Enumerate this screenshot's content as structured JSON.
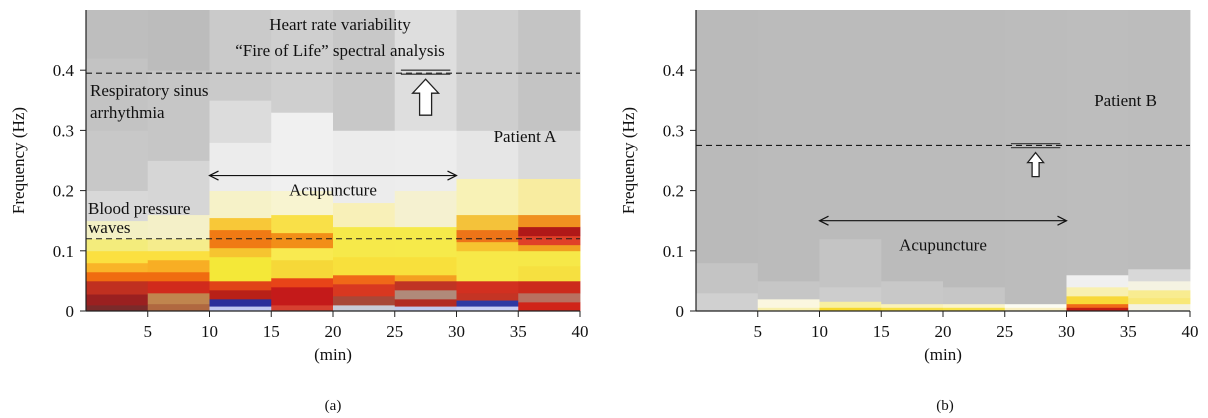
{
  "chart_data": [
    {
      "type": "heatmap",
      "panel_label": "(a)",
      "title": "Heart rate variability",
      "subtitle": "“Fire of Life” spectral analysis",
      "xlabel": "(min)",
      "ylabel": "Frequency (Hz)",
      "xlim": [
        0,
        40
      ],
      "ylim": [
        0,
        0.5
      ],
      "x_ticks": [
        5,
        10,
        15,
        20,
        25,
        30,
        35,
        40
      ],
      "y_ticks": [
        0,
        0.1,
        0.2,
        0.3,
        0.4
      ],
      "y_tick_labels": [
        "0",
        "0.1",
        "0.2",
        "0.3",
        "0.4"
      ],
      "patient_label": "Patient A",
      "reference_lines": [
        {
          "y": 0.395,
          "label": "Respiratory sinus arrhythmia",
          "label_lines": [
            "Respiratory sinus",
            "arrhythmia"
          ]
        },
        {
          "y": 0.12,
          "label": "Blood pressure waves",
          "label_lines": [
            "Blood pressure",
            "waves"
          ]
        }
      ],
      "marker": {
        "x": [
          25.5,
          29.5
        ],
        "y": 0.4,
        "arrow": "up"
      },
      "annotation": {
        "text": "Acupuncture",
        "x_start": 10,
        "x_end": 30,
        "y": 0.225
      },
      "columns": [
        {
          "x": [
            0,
            5
          ],
          "bands": [
            [
              0,
              0.01,
              "#7a2a2a"
            ],
            [
              0.01,
              0.028,
              "#9a2020"
            ],
            [
              0.028,
              0.05,
              "#c03020"
            ],
            [
              0.05,
              0.065,
              "#f06c10"
            ],
            [
              0.065,
              0.08,
              "#f9b428"
            ],
            [
              0.08,
              0.1,
              "#fbe040"
            ],
            [
              0.1,
              0.12,
              "#f3ec7c"
            ],
            [
              0.12,
              0.15,
              "#f3f0c4"
            ],
            [
              0.15,
              0.2,
              "#d8d8d8"
            ],
            [
              0.2,
              0.3,
              "#c8c8c8"
            ],
            [
              0.3,
              0.42,
              "#c3c3c3"
            ],
            [
              0.42,
              0.5,
              "#bebebe"
            ]
          ]
        },
        {
          "x": [
            5,
            10
          ],
          "bands": [
            [
              0,
              0.012,
              "#b06840"
            ],
            [
              0.012,
              0.03,
              "#c0854e"
            ],
            [
              0.03,
              0.05,
              "#d12a1c"
            ],
            [
              0.05,
              0.065,
              "#f06c10"
            ],
            [
              0.065,
              0.085,
              "#f8ae24"
            ],
            [
              0.085,
              0.1,
              "#fbe040"
            ],
            [
              0.1,
              0.12,
              "#f5ec8c"
            ],
            [
              0.12,
              0.16,
              "#f4f0c8"
            ],
            [
              0.16,
              0.25,
              "#d6d6d6"
            ],
            [
              0.25,
              0.4,
              "#c6c6c6"
            ],
            [
              0.4,
              0.5,
              "#bcbcbc"
            ]
          ]
        },
        {
          "x": [
            10,
            15
          ],
          "bands": [
            [
              0,
              0.008,
              "#c0c8f0"
            ],
            [
              0.008,
              0.02,
              "#2a2f9a"
            ],
            [
              0.02,
              0.035,
              "#b82018"
            ],
            [
              0.035,
              0.05,
              "#e04418"
            ],
            [
              0.05,
              0.09,
              "#f4e838"
            ],
            [
              0.09,
              0.105,
              "#f6c430"
            ],
            [
              0.105,
              0.135,
              "#f07a14"
            ],
            [
              0.135,
              0.155,
              "#f8c838"
            ],
            [
              0.155,
              0.2,
              "#f6f2c8"
            ],
            [
              0.2,
              0.28,
              "#ececec"
            ],
            [
              0.28,
              0.35,
              "#dcdcdc"
            ],
            [
              0.35,
              0.5,
              "#cacaca"
            ]
          ]
        },
        {
          "x": [
            15,
            20
          ],
          "bands": [
            [
              0,
              0.01,
              "#d64030"
            ],
            [
              0.01,
              0.04,
              "#c41a1a"
            ],
            [
              0.04,
              0.055,
              "#e84418"
            ],
            [
              0.055,
              0.085,
              "#f6d838"
            ],
            [
              0.085,
              0.105,
              "#f9ea50"
            ],
            [
              0.105,
              0.13,
              "#f28e18"
            ],
            [
              0.13,
              0.16,
              "#f9e048"
            ],
            [
              0.16,
              0.2,
              "#f8f4d0"
            ],
            [
              0.2,
              0.33,
              "#f0f0f0"
            ],
            [
              0.33,
              0.5,
              "#cfcfcf"
            ]
          ]
        },
        {
          "x": [
            20,
            25
          ],
          "bands": [
            [
              0,
              0.01,
              "#c8ccd8"
            ],
            [
              0.01,
              0.025,
              "#a84838"
            ],
            [
              0.025,
              0.045,
              "#d83820"
            ],
            [
              0.045,
              0.06,
              "#f06818"
            ],
            [
              0.06,
              0.09,
              "#f8e03c"
            ],
            [
              0.09,
              0.14,
              "#f6e94a"
            ],
            [
              0.14,
              0.18,
              "#f8f0b8"
            ],
            [
              0.18,
              0.3,
              "#ececec"
            ],
            [
              0.3,
              0.5,
              "#c8c8c8"
            ]
          ]
        },
        {
          "x": [
            25,
            30
          ],
          "bands": [
            [
              0,
              0.008,
              "#c0c8ec"
            ],
            [
              0.008,
              0.02,
              "#b22c22"
            ],
            [
              0.02,
              0.035,
              "#b08a7a"
            ],
            [
              0.035,
              0.05,
              "#c03424"
            ],
            [
              0.05,
              0.06,
              "#f4a020"
            ],
            [
              0.06,
              0.09,
              "#f8e03c"
            ],
            [
              0.09,
              0.14,
              "#f6ea4a"
            ],
            [
              0.14,
              0.2,
              "#f5f1d0"
            ],
            [
              0.2,
              0.3,
              "#ededed"
            ],
            [
              0.3,
              0.5,
              "#dedede"
            ]
          ]
        },
        {
          "x": [
            30,
            35
          ],
          "bands": [
            [
              0,
              0.008,
              "#c8d0f4"
            ],
            [
              0.008,
              0.018,
              "#2e3aa2"
            ],
            [
              0.018,
              0.03,
              "#c43424"
            ],
            [
              0.03,
              0.05,
              "#d23020"
            ],
            [
              0.05,
              0.1,
              "#f7e848"
            ],
            [
              0.1,
              0.115,
              "#f6c430"
            ],
            [
              0.115,
              0.135,
              "#ee7418"
            ],
            [
              0.135,
              0.16,
              "#f4c23a"
            ],
            [
              0.16,
              0.22,
              "#f8f2b6"
            ],
            [
              0.22,
              0.3,
              "#e6e6e6"
            ],
            [
              0.3,
              0.5,
              "#cecece"
            ]
          ]
        },
        {
          "x": [
            35,
            40
          ],
          "bands": [
            [
              0,
              0.015,
              "#d02418"
            ],
            [
              0.015,
              0.03,
              "#b87060"
            ],
            [
              0.03,
              0.05,
              "#cc2a1c"
            ],
            [
              0.05,
              0.075,
              "#f6e040"
            ],
            [
              0.075,
              0.1,
              "#f6e848"
            ],
            [
              0.1,
              0.11,
              "#f0a020"
            ],
            [
              0.11,
              0.125,
              "#e04028"
            ],
            [
              0.125,
              0.14,
              "#b01818"
            ],
            [
              0.14,
              0.16,
              "#f09020"
            ],
            [
              0.16,
              0.22,
              "#f8eca0"
            ],
            [
              0.22,
              0.3,
              "#dadada"
            ],
            [
              0.3,
              0.5,
              "#c4c4c4"
            ]
          ]
        }
      ]
    },
    {
      "type": "heatmap",
      "panel_label": "(b)",
      "xlabel": "(min)",
      "ylabel": "Frequency (Hz)",
      "xlim": [
        0,
        40
      ],
      "ylim": [
        0,
        0.5
      ],
      "x_ticks": [
        5,
        10,
        15,
        20,
        25,
        30,
        35,
        40
      ],
      "y_ticks": [
        0,
        0.1,
        0.2,
        0.3,
        0.4
      ],
      "y_tick_labels": [
        "0",
        "0.1",
        "0.2",
        "0.3",
        "0.4"
      ],
      "patient_label": "Patient B",
      "reference_lines": [
        {
          "y": 0.275
        }
      ],
      "marker": {
        "x": [
          25.5,
          29.5
        ],
        "y": 0.278,
        "arrow": "up"
      },
      "annotation": {
        "text": "Acupuncture",
        "x_start": 10,
        "x_end": 30,
        "y": 0.15
      },
      "columns": [
        {
          "x": [
            0,
            5
          ],
          "bands": [
            [
              0,
              0.03,
              "#d0d0d0"
            ],
            [
              0.03,
              0.08,
              "#c4c4c4"
            ],
            [
              0.08,
              0.5,
              "#bababa"
            ]
          ]
        },
        {
          "x": [
            5,
            10
          ],
          "bands": [
            [
              0,
              0.006,
              "#f8f0b0"
            ],
            [
              0.006,
              0.02,
              "#fbf7e0"
            ],
            [
              0.02,
              0.05,
              "#c6c6c6"
            ],
            [
              0.05,
              0.5,
              "#bbbbbb"
            ]
          ]
        },
        {
          "x": [
            10,
            15
          ],
          "bands": [
            [
              0,
              0.006,
              "#f6d828"
            ],
            [
              0.006,
              0.016,
              "#f8f0a0"
            ],
            [
              0.016,
              0.04,
              "#cdcdcd"
            ],
            [
              0.04,
              0.12,
              "#c4c4c4"
            ],
            [
              0.12,
              0.5,
              "#bbbbbb"
            ]
          ]
        },
        {
          "x": [
            15,
            20
          ],
          "bands": [
            [
              0,
              0.006,
              "#f8e040"
            ],
            [
              0.006,
              0.012,
              "#faf2b8"
            ],
            [
              0.012,
              0.05,
              "#c8c8c8"
            ],
            [
              0.05,
              0.5,
              "#bbbbbb"
            ]
          ]
        },
        {
          "x": [
            20,
            25
          ],
          "bands": [
            [
              0,
              0.006,
              "#f8e448"
            ],
            [
              0.006,
              0.012,
              "#fbf4c8"
            ],
            [
              0.012,
              0.04,
              "#c6c6c6"
            ],
            [
              0.04,
              0.5,
              "#bbbbbb"
            ]
          ]
        },
        {
          "x": [
            25,
            30
          ],
          "bands": [
            [
              0,
              0.006,
              "#faf0c0"
            ],
            [
              0.006,
              0.012,
              "#fcfcf2"
            ],
            [
              0.012,
              0.5,
              "#bcbcbc"
            ]
          ]
        },
        {
          "x": [
            30,
            35
          ],
          "bands": [
            [
              0,
              0.006,
              "#c21c14"
            ],
            [
              0.006,
              0.012,
              "#f06818"
            ],
            [
              0.012,
              0.025,
              "#f8d838"
            ],
            [
              0.025,
              0.04,
              "#f8f0b0"
            ],
            [
              0.04,
              0.06,
              "#f0f0f0"
            ],
            [
              0.06,
              0.5,
              "#bdbdbd"
            ]
          ]
        },
        {
          "x": [
            35,
            40
          ],
          "bands": [
            [
              0,
              0.012,
              "#f4f2e0"
            ],
            [
              0.012,
              0.022,
              "#f8e878"
            ],
            [
              0.022,
              0.035,
              "#f8ec90"
            ],
            [
              0.035,
              0.05,
              "#f5f3e2"
            ],
            [
              0.05,
              0.07,
              "#d8d8d8"
            ],
            [
              0.07,
              0.5,
              "#bcbcbc"
            ]
          ]
        }
      ]
    }
  ]
}
